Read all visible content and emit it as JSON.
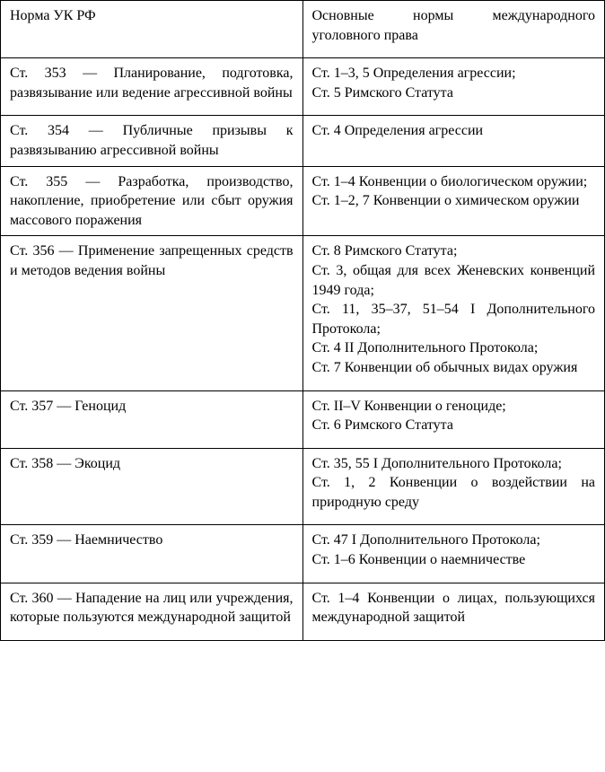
{
  "table": {
    "type": "table",
    "columns": [
      "Норма УК РФ",
      "Основные нормы международного уголовного права"
    ],
    "rows": [
      {
        "left": "Норма УК РФ",
        "right": "Основные нормы международного уголовного права",
        "header": true
      },
      {
        "left": "Ст. 353 — Планирование, подго­товка, развязывание или ведение агрессивной войны",
        "right": "Ст. 1–3, 5 Определения агрессии;\nСт. 5 Римского Статута"
      },
      {
        "left": "Ст. 354 — Публичные призывы к развязыванию агрессивной войны",
        "right": "Ст. 4 Определения агрессии"
      },
      {
        "left": "Ст. 355 — Разработка, производст­во, накопление, приобретение или сбыт оружия массового поражения",
        "right": "Ст. 1–4 Конвенции о биологическом оружии;\nСт. 1–2, 7 Конвенции о химическом оружии"
      },
      {
        "left": "Ст. 356 — Применение запрещен­ных средств и методов ведения войны",
        "right": "Ст. 8 Римского Статута;\nСт. 3, общая для всех Женевских конвенций 1949 года;\nСт. 11, 35–37, 51–54 I Дополнитель­ного Протокола;\nСт. 4 II Дополнительного Протокола;\nСт. 7 Конвенции об обычных видах оружия"
      },
      {
        "left": "Ст. 357 — Геноцид",
        "right": "Ст. II–V Конвенции о геноциде;\nСт. 6 Римского Статута"
      },
      {
        "left": "Ст. 358 — Экоцид",
        "right": "Ст. 35, 55 I Дополнительного Прото­кола;\nСт. 1, 2 Конвенции о воздействии на природную среду"
      },
      {
        "left": "Ст. 359 — Наемничество",
        "right": "Ст. 47 I Дополнительного Протоко­ла;\nСт. 1–6 Конвенции о наемничестве"
      },
      {
        "left": "Ст. 360 — Нападение на лиц или учреждения, которые пользуются международной защитой",
        "right": "Ст. 1–4 Конвенции о лицах, поль­зующихся международной защитой"
      }
    ],
    "border_color": "#000000",
    "background_color": "#ffffff",
    "font_family": "Times New Roman",
    "font_size_pt": 12,
    "text_color": "#000000",
    "column_widths": [
      0.5,
      0.5
    ],
    "text_align": "justify"
  }
}
